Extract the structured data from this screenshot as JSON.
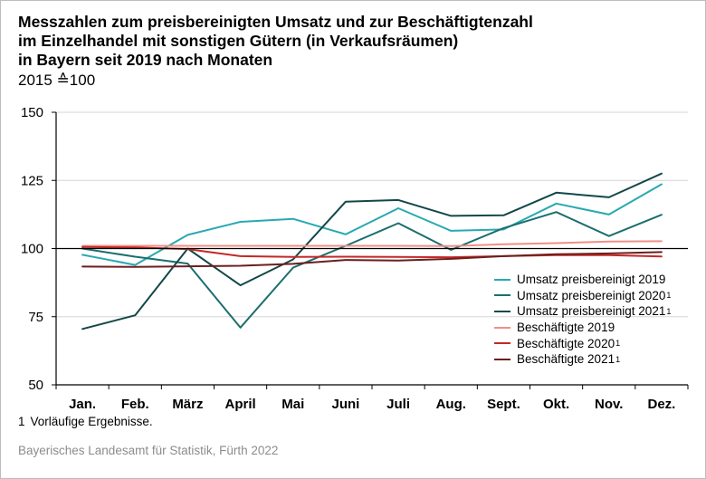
{
  "title_lines": [
    "Messzahlen zum preisbereinigten Umsatz und zur Beschäftigtenzahl",
    "im Einzelhandel mit sonstigen Gütern (in Verkaufsräumen)",
    "in Bayern seit 2019 nach Monaten"
  ],
  "subtitle": "2015 ≙100",
  "footnote": {
    "number": "1",
    "text": "Vorläufige Ergebnisse."
  },
  "source": "Bayerisches Landesamt für Statistik, Fürth 2022",
  "chart_data": {
    "type": "line",
    "categories": [
      "Jan.",
      "Feb.",
      "März",
      "April",
      "Mai",
      "Juni",
      "Juli",
      "Aug.",
      "Sept.",
      "Okt.",
      "Nov.",
      "Dez."
    ],
    "ylim": [
      50,
      150
    ],
    "yticks": [
      50,
      75,
      100,
      125,
      150
    ],
    "grid": "horizontal",
    "reference_line": 100,
    "legend_position": "right",
    "series": [
      {
        "name": "Umsatz preisbereinigt 2019",
        "footnote_ref": "",
        "color": "#29a9b0",
        "values": [
          97.7,
          94.0,
          105.0,
          109.8,
          110.9,
          105.2,
          114.8,
          106.5,
          107.0,
          116.5,
          112.5,
          123.6
        ]
      },
      {
        "name": "Umsatz preisbereinigt 2020",
        "footnote_ref": "1",
        "color": "#1c6e6e",
        "values": [
          100.0,
          97.0,
          94.5,
          71.0,
          93.0,
          101.0,
          109.3,
          99.5,
          107.5,
          113.4,
          104.6,
          112.4
        ]
      },
      {
        "name": "Umsatz preisbereinigt 2021",
        "footnote_ref": "1",
        "color": "#134848",
        "values": [
          70.5,
          75.5,
          100.0,
          86.5,
          96.0,
          117.2,
          117.8,
          112.0,
          112.2,
          120.5,
          118.8,
          127.5
        ]
      },
      {
        "name": "Beschäftigte 2019",
        "footnote_ref": "",
        "color": "#ef8f87",
        "values": [
          101.0,
          101.0,
          101.0,
          101.0,
          101.0,
          101.0,
          101.0,
          100.9,
          101.6,
          102.0,
          102.6,
          102.7
        ]
      },
      {
        "name": "Beschäftigte 2020",
        "footnote_ref": "1",
        "color": "#c42727",
        "values": [
          100.6,
          100.4,
          99.8,
          97.2,
          96.9,
          97.0,
          96.9,
          96.8,
          97.2,
          97.6,
          97.6,
          97.1
        ]
      },
      {
        "name": "Beschäftigte 2021",
        "footnote_ref": "1",
        "color": "#6b1f1f",
        "values": [
          93.4,
          93.3,
          93.5,
          93.7,
          94.4,
          95.8,
          95.6,
          96.2,
          97.2,
          97.9,
          98.2,
          98.7
        ]
      }
    ]
  }
}
